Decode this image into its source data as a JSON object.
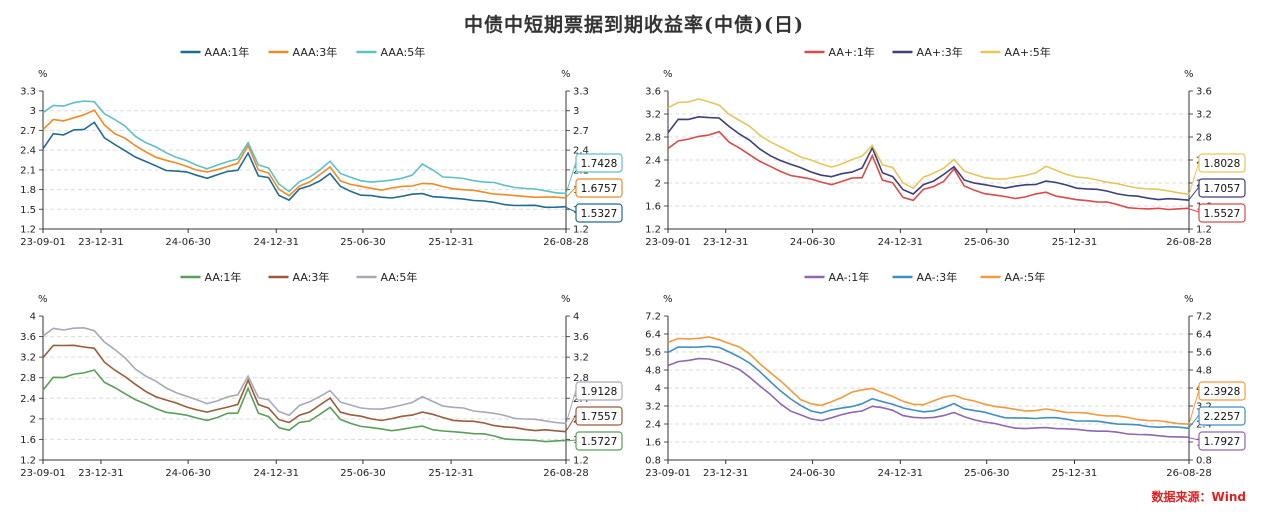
{
  "title": "中债中短期票据到期收益率(中债)(日)",
  "source": "数据来源：Wind",
  "chart_data": [
    {
      "type": "line",
      "unit_left": "%",
      "unit_right": "%",
      "ylim": [
        1.2,
        3.3
      ],
      "yticks": [
        "3.3",
        "3",
        "2.7",
        "2.4",
        "2.1",
        "1.8",
        "1.5",
        "1.2"
      ],
      "xticks": [
        "23-09-01",
        "23-12-31",
        "24-06-30",
        "24-12-31",
        "25-06-30",
        "25-12-31",
        "26-08-28"
      ],
      "grid": true,
      "legend": "top-center",
      "series": [
        {
          "name": "AAA:1年",
          "color": "#1f6b94",
          "values": [
            2.42,
            2.66,
            2.63,
            2.7,
            2.72,
            2.83,
            2.58,
            2.48,
            2.4,
            2.3,
            2.22,
            2.16,
            2.1,
            2.08,
            2.06,
            2.02,
            1.98,
            2.02,
            2.07,
            2.1,
            2.36,
            2.0,
            1.98,
            1.72,
            1.64,
            1.8,
            1.86,
            1.94,
            2.04,
            1.84,
            1.78,
            1.72,
            1.7,
            1.68,
            1.68,
            1.7,
            1.72,
            1.74,
            1.7,
            1.68,
            1.66,
            1.66,
            1.64,
            1.62,
            1.6,
            1.58,
            1.56,
            1.55,
            1.56,
            1.54,
            1.53,
            1.53
          ],
          "last_label": "1.5327"
        },
        {
          "name": "AAA:3年",
          "color": "#f08a24",
          "values": [
            2.72,
            2.86,
            2.84,
            2.9,
            2.94,
            3.0,
            2.78,
            2.66,
            2.58,
            2.46,
            2.38,
            2.3,
            2.24,
            2.2,
            2.16,
            2.1,
            2.06,
            2.1,
            2.16,
            2.2,
            2.46,
            2.1,
            2.06,
            1.8,
            1.7,
            1.86,
            1.92,
            2.02,
            2.14,
            1.94,
            1.88,
            1.84,
            1.82,
            1.8,
            1.82,
            1.84,
            1.86,
            1.9,
            1.88,
            1.84,
            1.82,
            1.8,
            1.78,
            1.76,
            1.74,
            1.72,
            1.7,
            1.7,
            1.69,
            1.68,
            1.68,
            1.68
          ],
          "last_label": "1.6757"
        },
        {
          "name": "AAA:5年",
          "color": "#5cc1c6",
          "values": [
            2.96,
            3.08,
            3.08,
            3.12,
            3.14,
            3.14,
            2.96,
            2.86,
            2.76,
            2.62,
            2.52,
            2.44,
            2.36,
            2.3,
            2.24,
            2.16,
            2.12,
            2.18,
            2.22,
            2.26,
            2.52,
            2.18,
            2.12,
            1.88,
            1.78,
            1.92,
            1.98,
            2.1,
            2.24,
            2.04,
            1.98,
            1.94,
            1.92,
            1.92,
            1.94,
            1.98,
            2.02,
            2.18,
            2.1,
            2.0,
            1.98,
            1.96,
            1.94,
            1.92,
            1.9,
            1.86,
            1.84,
            1.82,
            1.8,
            1.78,
            1.76,
            1.74
          ],
          "last_label": "1.7428"
        }
      ]
    },
    {
      "type": "line",
      "unit_left": "%",
      "unit_right": "%",
      "ylim": [
        1.2,
        3.6
      ],
      "yticks": [
        "3.6",
        "3.2",
        "2.8",
        "2.4",
        "2",
        "1.6",
        "1.2"
      ],
      "xticks": [
        "23-09-01",
        "23-12-31",
        "24-06-30",
        "24-12-31",
        "25-06-30",
        "25-12-31",
        "26-08-28"
      ],
      "grid": true,
      "legend": "top-center",
      "series": [
        {
          "name": "AA+:1年",
          "color": "#d94a4a",
          "values": [
            2.6,
            2.74,
            2.76,
            2.8,
            2.84,
            2.9,
            2.7,
            2.6,
            2.5,
            2.38,
            2.28,
            2.2,
            2.14,
            2.1,
            2.06,
            2.02,
            1.98,
            2.02,
            2.08,
            2.1,
            2.48,
            2.04,
            2.0,
            1.76,
            1.7,
            1.88,
            1.94,
            2.04,
            2.24,
            1.94,
            1.88,
            1.82,
            1.78,
            1.76,
            1.74,
            1.76,
            1.8,
            1.84,
            1.78,
            1.74,
            1.7,
            1.7,
            1.68,
            1.66,
            1.62,
            1.58,
            1.56,
            1.54,
            1.56,
            1.55,
            1.55,
            1.55
          ],
          "last_label": "1.5527"
        },
        {
          "name": "AA+:3年",
          "color": "#3b3f7a",
          "values": [
            2.88,
            3.1,
            3.1,
            3.16,
            3.14,
            3.12,
            2.98,
            2.86,
            2.74,
            2.58,
            2.48,
            2.4,
            2.32,
            2.26,
            2.2,
            2.14,
            2.1,
            2.16,
            2.2,
            2.26,
            2.6,
            2.18,
            2.12,
            1.88,
            1.8,
            1.98,
            2.04,
            2.14,
            2.28,
            2.06,
            2.0,
            1.96,
            1.94,
            1.92,
            1.94,
            1.96,
            1.98,
            2.04,
            2.0,
            1.96,
            1.92,
            1.9,
            1.88,
            1.86,
            1.82,
            1.78,
            1.76,
            1.74,
            1.72,
            1.72,
            1.71,
            1.71
          ],
          "last_label": "1.7057"
        },
        {
          "name": "AA+:5年",
          "color": "#e8c55a",
          "values": [
            3.3,
            3.4,
            3.42,
            3.46,
            3.4,
            3.36,
            3.2,
            3.08,
            2.98,
            2.84,
            2.72,
            2.62,
            2.54,
            2.46,
            2.4,
            2.32,
            2.28,
            2.34,
            2.4,
            2.46,
            2.66,
            2.32,
            2.26,
            2.0,
            1.92,
            2.1,
            2.16,
            2.26,
            2.42,
            2.2,
            2.14,
            2.1,
            2.08,
            2.06,
            2.1,
            2.14,
            2.18,
            2.28,
            2.22,
            2.16,
            2.1,
            2.08,
            2.06,
            2.02,
            1.98,
            1.94,
            1.92,
            1.9,
            1.88,
            1.86,
            1.84,
            1.8
          ],
          "last_label": "1.8028"
        }
      ]
    },
    {
      "type": "line",
      "unit_left": "%",
      "unit_right": "%",
      "ylim": [
        1.2,
        4.0
      ],
      "yticks": [
        "4",
        "3.6",
        "3.2",
        "2.8",
        "2.4",
        "2",
        "1.6",
        "1.2"
      ],
      "xticks": [
        "23-09-01",
        "23-12-31",
        "24-06-30",
        "24-12-31",
        "25-06-30",
        "25-12-31",
        "26-08-28"
      ],
      "grid": true,
      "legend": "top-center",
      "series": [
        {
          "name": "AA:1年",
          "color": "#5a9e5a",
          "values": [
            2.56,
            2.82,
            2.8,
            2.86,
            2.9,
            2.96,
            2.7,
            2.6,
            2.5,
            2.38,
            2.28,
            2.2,
            2.14,
            2.1,
            2.06,
            2.02,
            1.98,
            2.02,
            2.1,
            2.12,
            2.6,
            2.1,
            2.04,
            1.84,
            1.78,
            1.92,
            1.96,
            2.1,
            2.22,
            1.98,
            1.92,
            1.86,
            1.82,
            1.8,
            1.78,
            1.8,
            1.82,
            1.86,
            1.8,
            1.76,
            1.74,
            1.74,
            1.72,
            1.7,
            1.66,
            1.62,
            1.6,
            1.58,
            1.58,
            1.57,
            1.57,
            1.57
          ],
          "last_label": "1.5727"
        },
        {
          "name": "AA:3年",
          "color": "#9a5b3a",
          "values": [
            3.2,
            3.42,
            3.42,
            3.44,
            3.4,
            3.36,
            3.1,
            2.96,
            2.82,
            2.66,
            2.54,
            2.44,
            2.36,
            2.3,
            2.24,
            2.18,
            2.12,
            2.18,
            2.24,
            2.28,
            2.74,
            2.28,
            2.22,
            1.98,
            1.92,
            2.08,
            2.14,
            2.26,
            2.4,
            2.14,
            2.08,
            2.04,
            2.0,
            1.98,
            2.0,
            2.04,
            2.08,
            2.14,
            2.08,
            2.02,
            1.98,
            1.96,
            1.94,
            1.92,
            1.88,
            1.84,
            1.82,
            1.8,
            1.78,
            1.78,
            1.76,
            1.76
          ],
          "last_label": "1.7557"
        },
        {
          "name": "AA:5年",
          "color": "#a6a9b6",
          "values": [
            3.6,
            3.76,
            3.74,
            3.76,
            3.76,
            3.72,
            3.5,
            3.34,
            3.18,
            2.98,
            2.84,
            2.72,
            2.6,
            2.52,
            2.44,
            2.36,
            2.3,
            2.36,
            2.42,
            2.46,
            2.84,
            2.42,
            2.36,
            2.14,
            2.08,
            2.26,
            2.32,
            2.44,
            2.56,
            2.32,
            2.26,
            2.22,
            2.2,
            2.18,
            2.22,
            2.28,
            2.32,
            2.42,
            2.34,
            2.26,
            2.22,
            2.2,
            2.16,
            2.14,
            2.1,
            2.06,
            2.02,
            2.0,
            1.98,
            1.96,
            1.94,
            1.91
          ],
          "last_label": "1.9128"
        }
      ]
    },
    {
      "type": "line",
      "unit_left": "%",
      "unit_right": "%",
      "ylim": [
        0.8,
        7.2
      ],
      "yticks": [
        "7.2",
        "6.4",
        "5.6",
        "4.8",
        "4",
        "3.2",
        "2.4",
        "1.6",
        "0.8"
      ],
      "xticks": [
        "23-09-01",
        "23-12-31",
        "24-06-30",
        "24-12-31",
        "25-06-30",
        "25-12-31",
        "26-08-28"
      ],
      "grid": true,
      "legend": "top-center",
      "series": [
        {
          "name": "AA-:1年",
          "color": "#8e66b2",
          "values": [
            5.0,
            5.2,
            5.22,
            5.28,
            5.3,
            5.2,
            5.0,
            4.8,
            4.5,
            4.1,
            3.7,
            3.3,
            3.0,
            2.8,
            2.6,
            2.56,
            2.7,
            2.8,
            2.9,
            3.0,
            3.2,
            3.1,
            3.0,
            2.8,
            2.7,
            2.64,
            2.7,
            2.8,
            2.9,
            2.7,
            2.6,
            2.5,
            2.4,
            2.3,
            2.24,
            2.2,
            2.2,
            2.24,
            2.22,
            2.18,
            2.14,
            2.12,
            2.1,
            2.06,
            2.02,
            1.98,
            1.94,
            1.9,
            1.88,
            1.86,
            1.82,
            1.79
          ],
          "last_label": "1.7927"
        },
        {
          "name": "AA-:3年",
          "color": "#3f8fc0",
          "values": [
            5.6,
            5.8,
            5.8,
            5.84,
            5.86,
            5.78,
            5.6,
            5.4,
            5.1,
            4.7,
            4.3,
            3.9,
            3.5,
            3.2,
            3.0,
            2.9,
            3.0,
            3.1,
            3.2,
            3.3,
            3.5,
            3.4,
            3.3,
            3.1,
            3.0,
            2.96,
            3.0,
            3.1,
            3.3,
            3.1,
            3.0,
            2.9,
            2.8,
            2.7,
            2.66,
            2.64,
            2.66,
            2.7,
            2.66,
            2.6,
            2.56,
            2.54,
            2.5,
            2.46,
            2.42,
            2.38,
            2.34,
            2.3,
            2.28,
            2.26,
            2.24,
            2.23
          ],
          "last_label": "2.2257"
        },
        {
          "name": "AA-:5年",
          "color": "#f39a3c",
          "values": [
            6.0,
            6.2,
            6.2,
            6.2,
            6.24,
            6.16,
            6.0,
            5.8,
            5.5,
            5.1,
            4.7,
            4.3,
            3.9,
            3.5,
            3.3,
            3.2,
            3.4,
            3.6,
            3.8,
            3.9,
            4.0,
            3.8,
            3.6,
            3.4,
            3.3,
            3.26,
            3.4,
            3.6,
            3.7,
            3.5,
            3.4,
            3.3,
            3.2,
            3.1,
            3.04,
            3.0,
            3.0,
            3.04,
            3.0,
            2.94,
            2.9,
            2.86,
            2.82,
            2.78,
            2.74,
            2.68,
            2.62,
            2.56,
            2.52,
            2.48,
            2.44,
            2.39
          ],
          "last_label": "2.3928"
        }
      ]
    }
  ]
}
